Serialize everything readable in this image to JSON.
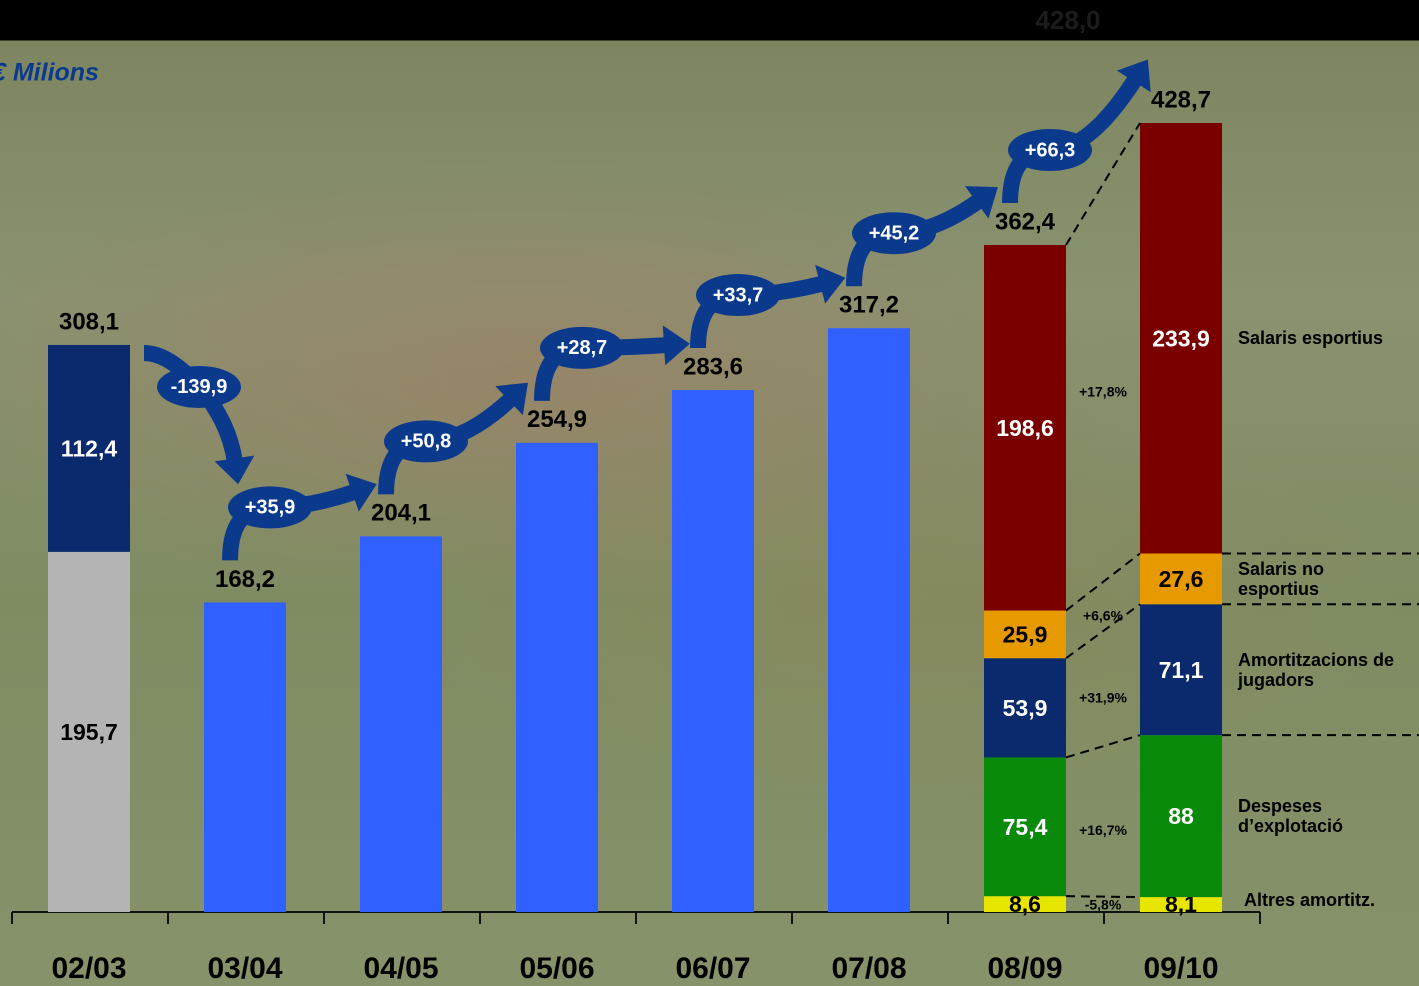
{
  "chart_data": {
    "type": "bar",
    "unit_label": "€ Milions",
    "faded_label": "428,0",
    "categories": [
      "02/03",
      "03/04",
      "04/05",
      "05/06",
      "06/07",
      "07/08",
      "08/09",
      "09/10"
    ],
    "totals": {
      "color": "#3060ff",
      "values": [
        308.1,
        168.2,
        204.1,
        254.9,
        283.6,
        317.2,
        362.4,
        428.7
      ],
      "value_labels": [
        "308,1",
        "168,2",
        "204,1",
        "254,9",
        "283,6",
        "317,2",
        "362,4",
        "428,7"
      ]
    },
    "series": [
      {
        "color": "#b4b4b4",
        "label_color": "#000000",
        "values": [
          195.7,
          null,
          null,
          null,
          null,
          null,
          null,
          null
        ],
        "value_labels": [
          "195,7",
          null,
          null,
          null,
          null,
          null,
          null,
          null
        ]
      },
      {
        "color": "#0b2a6e",
        "label_color": "#ffffff",
        "values": [
          112.4,
          null,
          null,
          null,
          null,
          null,
          null,
          null
        ],
        "value_labels": [
          "112,4",
          null,
          null,
          null,
          null,
          null,
          null,
          null
        ]
      },
      {
        "name": "Altres amortitz.",
        "color": "#e6e600",
        "label_color": "#000000",
        "values": [
          null,
          null,
          null,
          null,
          null,
          null,
          8.6,
          8.1
        ],
        "value_labels": [
          null,
          null,
          null,
          null,
          null,
          null,
          "8,6",
          "8,1"
        ],
        "growth": -5.8,
        "growth_label": "-5,8%"
      },
      {
        "name": "Despeses d’explotació",
        "color": "#0a8a0a",
        "label_color": "#ffffff",
        "values": [
          null,
          null,
          null,
          null,
          null,
          null,
          75.4,
          88
        ],
        "value_labels": [
          null,
          null,
          null,
          null,
          null,
          null,
          "75,4",
          "88"
        ],
        "growth": 16.7,
        "growth_label": "+16,7%"
      },
      {
        "name": "Amortitzacions de jugadors",
        "color": "#0b2a6e",
        "label_color": "#ffffff",
        "values": [
          null,
          null,
          null,
          null,
          null,
          null,
          53.9,
          71.1
        ],
        "value_labels": [
          null,
          null,
          null,
          null,
          null,
          null,
          "53,9",
          "71,1"
        ],
        "growth": 31.9,
        "growth_label": "+31,9%"
      },
      {
        "name": "Salaris no esportius",
        "color": "#e69a00",
        "label_color": "#000000",
        "values": [
          null,
          null,
          null,
          null,
          null,
          null,
          25.9,
          27.6
        ],
        "value_labels": [
          null,
          null,
          null,
          null,
          null,
          null,
          "25,9",
          "27,6"
        ],
        "growth": 6.6,
        "growth_label": "+6,6%"
      },
      {
        "name": "Salaris esportius",
        "color": "#7a0000",
        "label_color": "#ffffff",
        "values": [
          null,
          null,
          null,
          null,
          null,
          null,
          198.6,
          233.9
        ],
        "value_labels": [
          null,
          null,
          null,
          null,
          null,
          null,
          "198,6",
          "233,9"
        ],
        "growth": 17.8,
        "growth_label": "+17,8%"
      }
    ],
    "changes": {
      "color": "#0b3a8c",
      "values": [
        -139.9,
        35.9,
        50.8,
        28.7,
        33.7,
        45.2,
        66.3
      ],
      "value_labels": [
        "-139,9",
        "+35,9",
        "+50,8",
        "+28,7",
        "+33,7",
        "+45,2",
        "+66,3"
      ]
    }
  }
}
